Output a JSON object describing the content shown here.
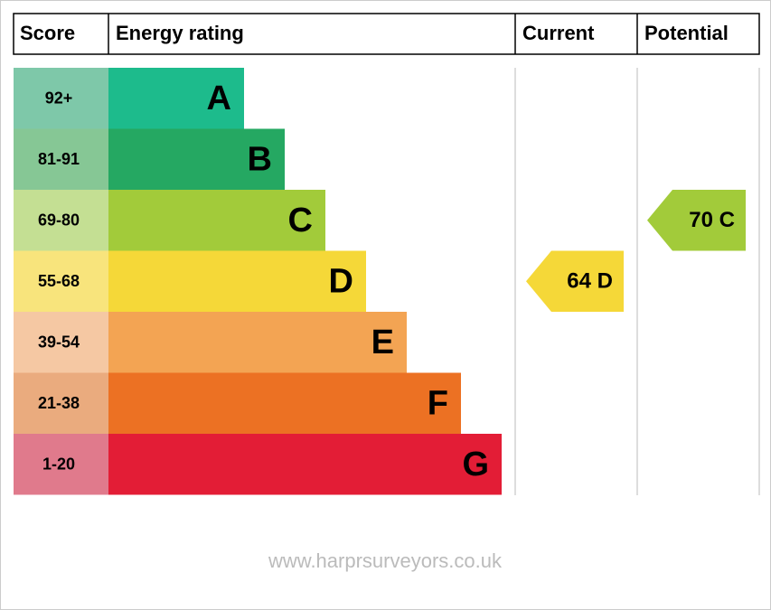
{
  "header": {
    "columns": [
      "Score",
      "Energy rating",
      "Current",
      "Potential"
    ]
  },
  "bands": [
    {
      "score": "92+",
      "letter": "A",
      "color": "#1dbb8c",
      "score_color": "#7ec8a9"
    },
    {
      "score": "81-91",
      "letter": "B",
      "color": "#25a862",
      "score_color": "#86c795"
    },
    {
      "score": "69-80",
      "letter": "C",
      "color": "#a2cb3a",
      "score_color": "#c4df93"
    },
    {
      "score": "55-68",
      "letter": "D",
      "color": "#f5d838",
      "score_color": "#f8e47c"
    },
    {
      "score": "39-54",
      "letter": "E",
      "color": "#f3a453",
      "score_color": "#f5c8a3"
    },
    {
      "score": "21-38",
      "letter": "F",
      "color": "#ec7123",
      "score_color": "#eaab7e"
    },
    {
      "score": "1-20",
      "letter": "G",
      "color": "#e31d36",
      "score_color": "#e07a8c"
    }
  ],
  "current": {
    "label": "64 D",
    "color": "#f5d838"
  },
  "potential": {
    "label": "70 C",
    "color": "#a2cb3a"
  },
  "footer": "www.harprsurveyors.co.uk"
}
